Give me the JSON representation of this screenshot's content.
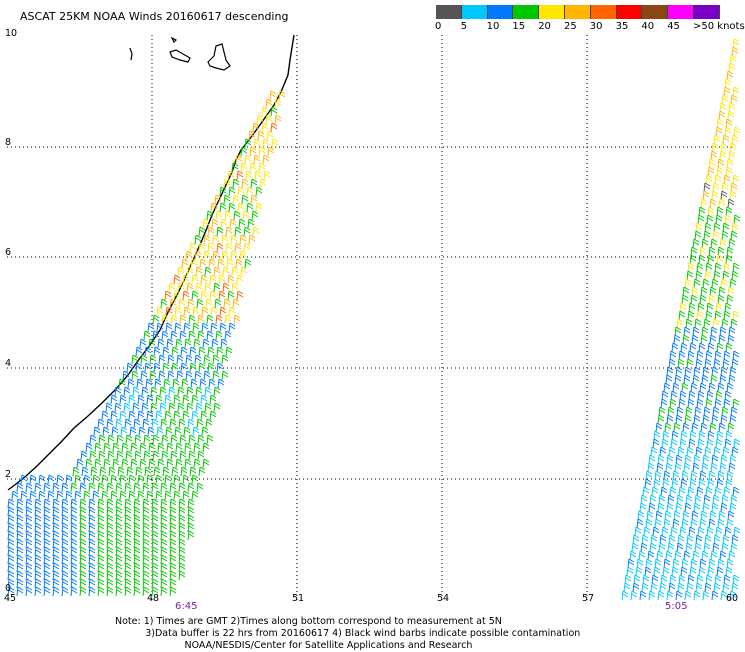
{
  "title": "ASCAT 25KM NOAA Winds 20160617 descending",
  "legend": {
    "colors": [
      "#555555",
      "#00c8ff",
      "#0078ff",
      "#00c800",
      "#ffe600",
      "#ffb400",
      "#ff6400",
      "#ff0000",
      "#8b4513",
      "#ff00ff",
      "#7a00c8"
    ],
    "labels": [
      "0",
      "5",
      "10",
      "15",
      "20",
      "25",
      "30",
      "35",
      "40",
      "45",
      ">50 knots"
    ]
  },
  "axes": {
    "x_ticks": [
      "45",
      "48",
      "51",
      "54",
      "57",
      "60"
    ],
    "y_ticks": [
      "0",
      "2",
      "4",
      "6",
      "8",
      "10"
    ]
  },
  "passes": {
    "left_time": "6:45",
    "right_time": "5:05"
  },
  "notes": {
    "line1": "Note: 1) Times are GMT 2)Times along bottom correspond to measurement at 5N",
    "line2": "3)Data buffer is 22 hrs from 20160617 4) Black wind barbs indicate possible contamination",
    "line3": "NOAA/NESDIS/Center for Satellite Applications and Research"
  }
}
